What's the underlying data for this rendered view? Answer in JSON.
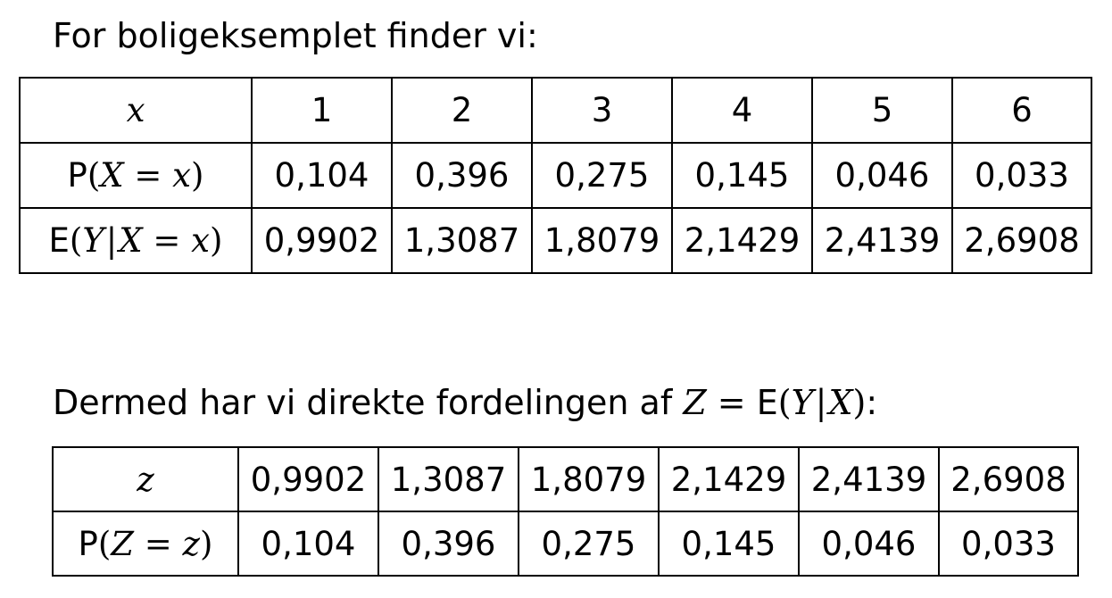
{
  "intro_text": "For boligeksemplet finder vi:",
  "table1": {
    "row_x": {
      "header": "x",
      "values": [
        "1",
        "2",
        "3",
        "4",
        "5",
        "6"
      ]
    },
    "row_p": {
      "fn": "P",
      "var": "X",
      "value": "x",
      "values": [
        "0,104",
        "0,396",
        "0,275",
        "0,145",
        "0,046",
        "0,033"
      ]
    },
    "row_e": {
      "fn": "E",
      "var_y": "Y",
      "var_x": "X",
      "value": "x",
      "values": [
        "0,9902",
        "1,3087",
        "1,8079",
        "2,1429",
        "2,4139",
        "2,6908"
      ]
    }
  },
  "second_text": {
    "prefix": "Dermed har vi direkte fordelingen af",
    "var_z": "Z",
    "fn": "E",
    "var_y": "Y",
    "var_x": "X",
    "suffix": ":"
  },
  "table2": {
    "row_z": {
      "header": "z",
      "values": [
        "0,9902",
        "1,3087",
        "1,8079",
        "2,1429",
        "2,4139",
        "2,6908"
      ]
    },
    "row_p": {
      "fn": "P",
      "var": "Z",
      "value": "z",
      "values": [
        "0,104",
        "0,396",
        "0,275",
        "0,145",
        "0,046",
        "0,033"
      ]
    }
  }
}
